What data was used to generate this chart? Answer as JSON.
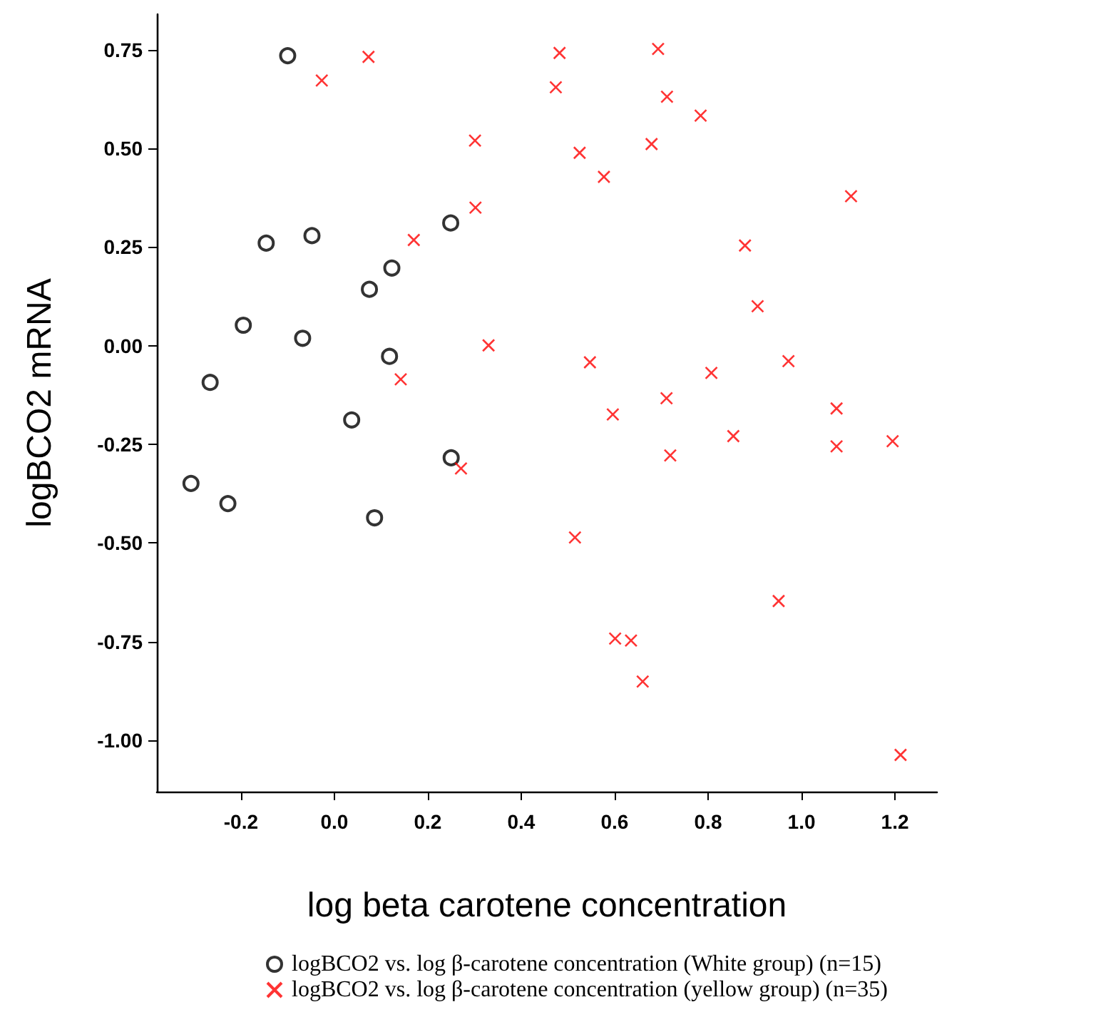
{
  "chart_data": {
    "type": "scatter",
    "xlabel": "log beta carotene concentration",
    "ylabel": "logBCO2 mRNA",
    "xlim": [
      -0.38,
      1.29
    ],
    "xticks": [
      {
        "value": -0.2,
        "label": "-0.2"
      },
      {
        "value": 0,
        "label": "0.0"
      },
      {
        "value": 0.2,
        "label": "0.2"
      },
      {
        "value": 0.4,
        "label": "0.4"
      },
      {
        "value": 0.6,
        "label": "0.6"
      },
      {
        "value": 0.8,
        "label": "0.8"
      },
      {
        "value": 1,
        "label": "1.0"
      },
      {
        "value": 1.2,
        "label": "1.2"
      }
    ],
    "ylim": [
      -1.13,
      0.84
    ],
    "yticks": [
      {
        "value": -1,
        "label": "-1.00"
      },
      {
        "value": -0.75,
        "label": "-0.75"
      },
      {
        "value": -0.5,
        "label": "-0.50"
      },
      {
        "value": -0.25,
        "label": "-0.25"
      },
      {
        "value": 0,
        "label": "0.00"
      },
      {
        "value": 0.25,
        "label": "0.25"
      },
      {
        "value": 0.5,
        "label": "0.50"
      },
      {
        "value": 0.75,
        "label": "0.75"
      }
    ],
    "grid": false,
    "legend": "bottom",
    "series": [
      {
        "name": "logBCO2 vs. log β-carotene concentration (White group) (n=15)",
        "color": "#000000",
        "marker": "circle",
        "x": [
          -0.1,
          -0.146,
          -0.048,
          0.249,
          0.123,
          0.075,
          -0.195,
          -0.068,
          0.118,
          -0.266,
          0.037,
          0.25,
          -0.307,
          -0.228,
          0.086
        ],
        "values": [
          0.735,
          0.26,
          0.279,
          0.311,
          0.197,
          0.143,
          0.052,
          0.019,
          -0.027,
          -0.093,
          -0.188,
          -0.284,
          -0.349,
          -0.4,
          -0.436
        ]
      },
      {
        "name": "logBCO2 vs. log β-carotene concentration (yellow group) (n=35)",
        "color": "#ff0000",
        "marker": "cross",
        "x": [
          -0.027,
          0.073,
          0.482,
          0.474,
          0.301,
          0.302,
          0.17,
          0.33,
          0.142,
          0.271,
          0.693,
          0.712,
          0.784,
          0.679,
          0.525,
          0.577,
          1.106,
          0.879,
          0.906,
          0.547,
          0.807,
          0.972,
          0.711,
          0.596,
          1.075,
          0.854,
          0.719,
          1.075,
          1.195,
          0.515,
          0.951,
          0.601,
          0.635,
          0.66,
          1.212
        ],
        "values": [
          0.672,
          0.732,
          0.742,
          0.655,
          0.52,
          0.35,
          0.268,
          0.001,
          -0.085,
          -0.311,
          0.752,
          0.631,
          0.583,
          0.511,
          0.489,
          0.428,
          0.379,
          0.254,
          0.1,
          -0.042,
          -0.069,
          -0.039,
          -0.133,
          -0.174,
          -0.159,
          -0.229,
          -0.278,
          -0.255,
          -0.242,
          -0.486,
          -0.647,
          -0.742,
          -0.747,
          -0.851,
          -1.037
        ]
      }
    ]
  }
}
